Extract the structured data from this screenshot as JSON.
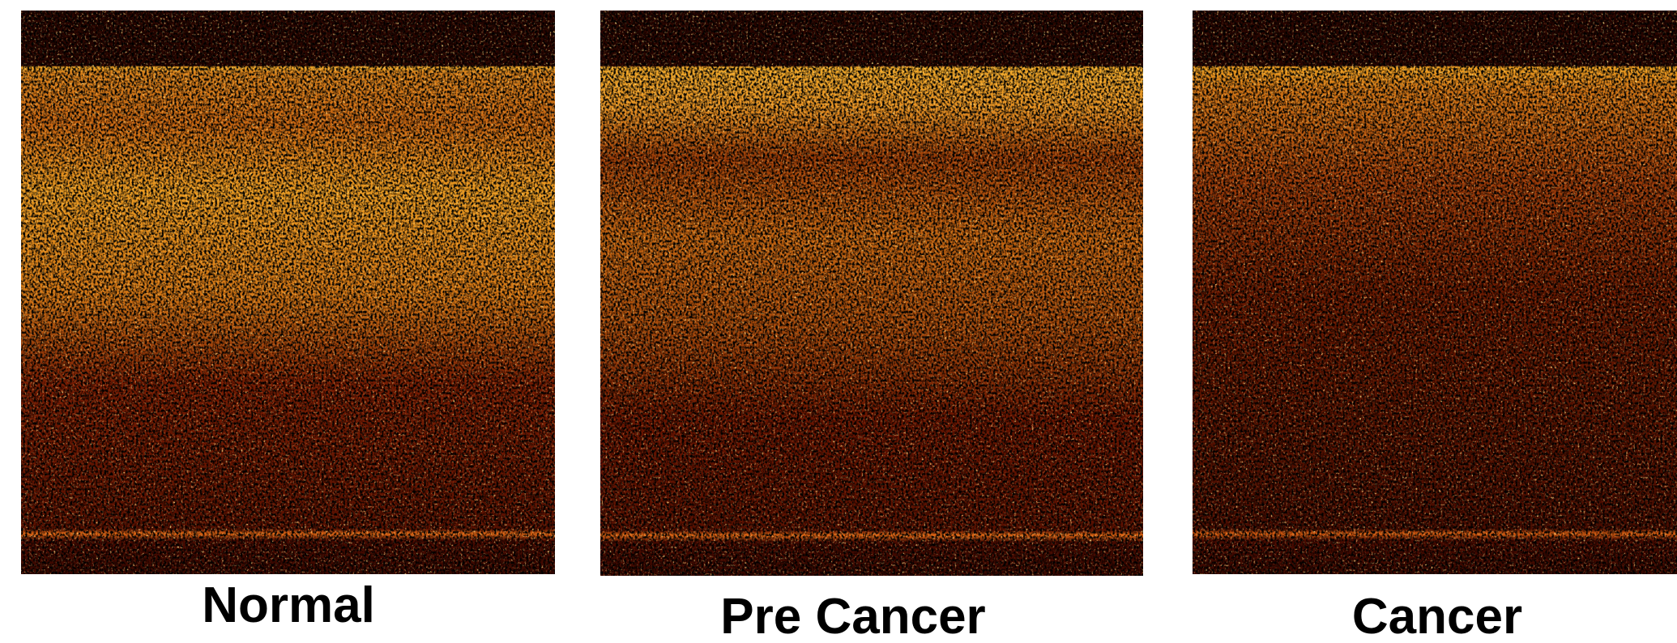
{
  "panels": [
    {
      "label": "Normal"
    },
    {
      "label": "Pre Cancer"
    },
    {
      "label": "Cancer"
    }
  ]
}
